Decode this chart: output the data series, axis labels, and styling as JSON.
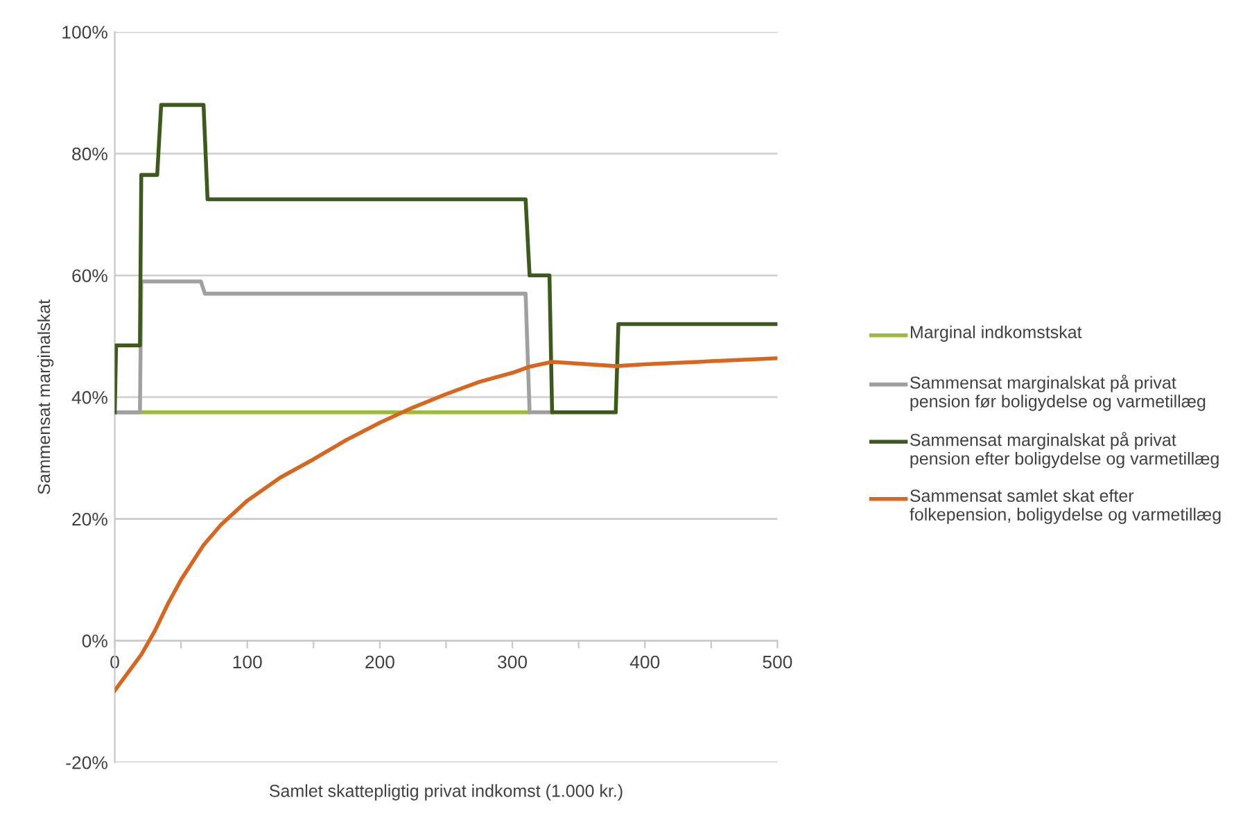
{
  "chart_data": {
    "type": "line",
    "xlabel": "Samlet skattepligtig privat indkomst (1.000 kr.)",
    "ylabel": "Sammensat marginalskat",
    "xlim": [
      0,
      500
    ],
    "xticks": [
      0,
      {
        "value": 50,
        "label": null
      },
      100,
      {
        "value": 150,
        "label": null
      },
      200,
      {
        "value": 250,
        "label": null
      },
      300,
      {
        "value": 350,
        "label": null
      },
      400,
      {
        "value": 450,
        "label": null
      },
      500
    ],
    "ylim": [
      -20,
      100
    ],
    "yticks": [
      {
        "value": -20,
        "label": "-20%"
      },
      {
        "value": 0,
        "label": "0%"
      },
      {
        "value": 20,
        "label": "20%"
      },
      {
        "value": 40,
        "label": "40%"
      },
      {
        "value": 60,
        "label": "60%"
      },
      {
        "value": 80,
        "label": "80%"
      },
      {
        "value": 100,
        "label": "100%"
      }
    ],
    "grid": "y",
    "legend": "right",
    "marker": "none",
    "line_style": "solid",
    "series": [
      {
        "name": "Marginal indkomstskat",
        "color": "#9bbb3b",
        "x": [
          0,
          312
        ],
        "values": [
          37.5,
          37.5
        ]
      },
      {
        "name": "Sammensat marginalskat på privat pension før boligydelse og varmetillæg",
        "color": "#a0a0a0",
        "x": [
          0,
          19,
          20,
          65,
          68,
          310,
          313,
          330
        ],
        "values": [
          37.5,
          37.5,
          59,
          59,
          57,
          57,
          37.5,
          37.5
        ]
      },
      {
        "name": "Sammensat marginalskat på privat pension efter boligydelse og varmetillæg",
        "color": "#3d5a1c",
        "x": [
          0,
          1,
          19,
          20,
          32,
          35,
          67,
          70,
          310,
          313,
          328,
          330,
          378,
          380,
          500
        ],
        "values": [
          37.5,
          48.5,
          48.5,
          76.5,
          76.5,
          88,
          88,
          72.5,
          72.5,
          60,
          60,
          37.5,
          37.5,
          52,
          52
        ]
      },
      {
        "name": "Sammensat samlet skat efter folkepension, boligydelse og varmetillæg",
        "color": "#d9661f",
        "x": [
          0,
          20,
          30,
          40,
          50,
          67,
          80,
          100,
          125,
          150,
          175,
          200,
          225,
          250,
          275,
          300,
          313,
          330,
          378,
          400,
          450,
          500
        ],
        "values": [
          -8.2,
          -2.3,
          1.5,
          6,
          10,
          15.7,
          19,
          23,
          26.8,
          29.8,
          33,
          35.8,
          38.3,
          40.5,
          42.5,
          44,
          45,
          45.8,
          45.1,
          45.4,
          45.9,
          46.4
        ]
      }
    ]
  }
}
